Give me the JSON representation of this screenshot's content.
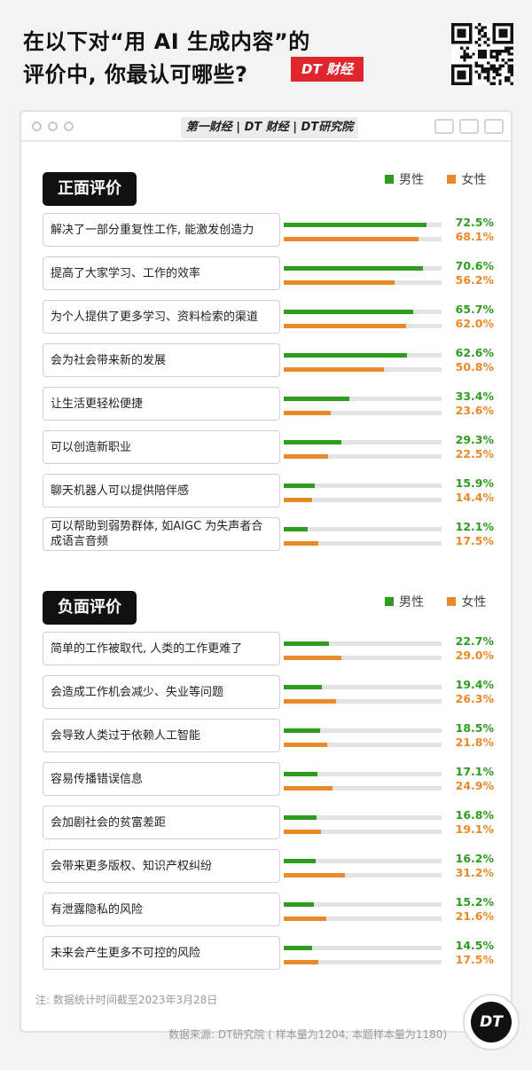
{
  "header": {
    "title_line1": "在以下对“用 AI 生成内容”的",
    "title_line2": "评价中, 你最认可哪些?",
    "brand_badge": "DT 财经"
  },
  "window": {
    "logos": "第一财经 | DT 财经 | DT研究院"
  },
  "legend": {
    "male": "男性",
    "female": "女性"
  },
  "colors": {
    "male": "#2e9c1e",
    "female": "#e8892a",
    "badge": "#e0262d"
  },
  "chart_data": [
    {
      "type": "bar",
      "title": "正面评价",
      "categories": [
        "解决了一部分重复性工作, 能激发创造力",
        "提高了大家学习、工作的效率",
        "为个人提供了更多学习、资料检索的渠道",
        "会为社会带来新的发展",
        "让生活更轻松便捷",
        "可以创造新职业",
        "聊天机器人可以提供陪伴感",
        "可以帮助到弱势群体, 如AIGC 为失声者合成语言音频"
      ],
      "series": [
        {
          "name": "男性",
          "values": [
            72.5,
            70.6,
            65.7,
            62.6,
            33.4,
            29.3,
            15.9,
            12.1
          ]
        },
        {
          "name": "女性",
          "values": [
            68.1,
            56.2,
            62.0,
            50.8,
            23.6,
            22.5,
            14.4,
            17.5
          ]
        }
      ],
      "value_labels": {
        "male": [
          "72.5%",
          "70.6%",
          "65.7%",
          "62.6%",
          "33.4%",
          "29.3%",
          "15.9%",
          "12.1%"
        ],
        "female": [
          "68.1%",
          "56.2%",
          "62.0%",
          "50.8%",
          "23.6%",
          "22.5%",
          "14.4%",
          "17.5%"
        ]
      },
      "xlim": [
        0,
        80
      ],
      "legend_position": "top-right"
    },
    {
      "type": "bar",
      "title": "负面评价",
      "categories": [
        "简单的工作被取代, 人类的工作更难了",
        "会造成工作机会减少、失业等问题",
        "会导致人类过于依赖人工智能",
        "容易传播错误信息",
        "会加剧社会的贫富差距",
        "会带来更多版权、知识产权纠纷",
        "有泄露隐私的风险",
        "未来会产生更多不可控的风险"
      ],
      "series": [
        {
          "name": "男性",
          "values": [
            22.7,
            19.4,
            18.5,
            17.1,
            16.8,
            16.2,
            15.2,
            14.5
          ]
        },
        {
          "name": "女性",
          "values": [
            29.0,
            26.3,
            21.8,
            24.9,
            19.1,
            31.2,
            21.6,
            17.5
          ]
        }
      ],
      "value_labels": {
        "male": [
          "22.7%",
          "19.4%",
          "18.5%",
          "17.1%",
          "16.8%",
          "16.2%",
          "15.2%",
          "14.5%"
        ],
        "female": [
          "29.0%",
          "26.3%",
          "21.8%",
          "24.9%",
          "19.1%",
          "31.2%",
          "21.6%",
          "17.5%"
        ]
      },
      "xlim": [
        0,
        80
      ],
      "legend_position": "top-right"
    }
  ],
  "footer": {
    "note": "注: 数据统计时间截至2023年3月28日",
    "source": "数据来源: DT研究院 ( 样本量为1204, 本题样本量为1180)",
    "circle_logo": "DT"
  }
}
